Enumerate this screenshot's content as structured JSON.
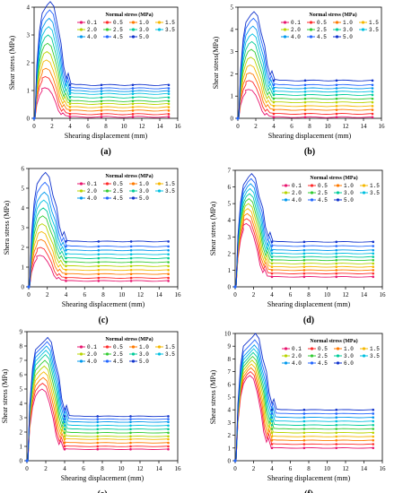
{
  "figure": {
    "legend_title": "Normal stress (MPa)",
    "legend_labels_base": [
      "0.1",
      "0.5",
      "1.0",
      "1.5",
      "2.0",
      "2.5",
      "3.0",
      "3.5",
      "4.0",
      "4.5",
      "5.0"
    ],
    "legend_labels_f": [
      "0.1",
      "0.5",
      "1.0",
      "1.5",
      "2.0",
      "2.5",
      "3.0",
      "3.5",
      "4.0",
      "4.5",
      "6.0"
    ],
    "series_colors": [
      "#e8156f",
      "#ff2b2b",
      "#ff7a00",
      "#f5b800",
      "#b8d400",
      "#33cc33",
      "#00cc99",
      "#00c0e0",
      "#0099ee",
      "#2266ff",
      "#1133cc"
    ]
  },
  "chart_data": [
    {
      "panel_label": "(a)",
      "type": "line",
      "xlabel": "Shearing displacement (mm)",
      "ylabel": "Shear stress (MPa)",
      "xlim": [
        0,
        16
      ],
      "ylim": [
        0,
        4
      ],
      "xticks": [
        "0",
        "2",
        "4",
        "6",
        "8",
        "10",
        "12",
        "14",
        "16"
      ],
      "yticks": [
        "0",
        "1",
        "2",
        "3",
        "4"
      ],
      "legend_position": "top-right",
      "series": [
        {
          "name": "0.1",
          "peak": 1.1,
          "residual": 0.05
        },
        {
          "name": "0.5",
          "peak": 1.5,
          "residual": 0.15
        },
        {
          "name": "1.0",
          "peak": 1.8,
          "residual": 0.28
        },
        {
          "name": "1.5",
          "peak": 2.1,
          "residual": 0.4
        },
        {
          "name": "2.0",
          "peak": 2.4,
          "residual": 0.52
        },
        {
          "name": "2.5",
          "peak": 2.7,
          "residual": 0.62
        },
        {
          "name": "3.0",
          "peak": 3.0,
          "residual": 0.75
        },
        {
          "name": "3.5",
          "peak": 3.3,
          "residual": 0.88
        },
        {
          "name": "4.0",
          "peak": 3.6,
          "residual": 0.98
        },
        {
          "name": "4.5",
          "peak": 3.9,
          "residual": 1.08
        },
        {
          "name": "5.0",
          "peak": 4.2,
          "residual": 1.2
        }
      ]
    },
    {
      "panel_label": "(b)",
      "type": "line",
      "xlabel": "Shearing displacement (mm)",
      "ylabel": "Shear stress(MPa)",
      "xlim": [
        0,
        16
      ],
      "ylim": [
        0,
        5
      ],
      "xticks": [
        "0",
        "2",
        "4",
        "6",
        "8",
        "10",
        "12",
        "14",
        "16"
      ],
      "yticks": [
        "0",
        "1",
        "2",
        "3",
        "4",
        "5"
      ],
      "legend_position": "top-right",
      "series": [
        {
          "name": "0.1",
          "peak": 1.3,
          "residual": 0.05
        },
        {
          "name": "0.5",
          "peak": 1.7,
          "residual": 0.2
        },
        {
          "name": "1.0",
          "peak": 2.05,
          "residual": 0.38
        },
        {
          "name": "1.5",
          "peak": 2.4,
          "residual": 0.55
        },
        {
          "name": "2.0",
          "peak": 2.75,
          "residual": 0.72
        },
        {
          "name": "2.5",
          "peak": 3.1,
          "residual": 0.88
        },
        {
          "name": "3.0",
          "peak": 3.45,
          "residual": 1.05
        },
        {
          "name": "3.5",
          "peak": 3.8,
          "residual": 1.2
        },
        {
          "name": "4.0",
          "peak": 4.15,
          "residual": 1.35
        },
        {
          "name": "4.5",
          "peak": 4.5,
          "residual": 1.5
        },
        {
          "name": "5.0",
          "peak": 4.8,
          "residual": 1.7
        }
      ]
    },
    {
      "panel_label": "(c)",
      "type": "line",
      "xlabel": "Shearing displacement (mm)",
      "ylabel": "Shera stress (MPa)",
      "xlim": [
        0,
        16
      ],
      "ylim": [
        0,
        6
      ],
      "xticks": [
        "0",
        "2",
        "4",
        "6",
        "8",
        "10",
        "12",
        "14",
        "16"
      ],
      "yticks": [
        "0",
        "1",
        "2",
        "3",
        "4",
        "5",
        "6"
      ],
      "legend_position": "top-right",
      "series": [
        {
          "name": "0.1",
          "peak": 1.6,
          "residual": 0.3
        },
        {
          "name": "0.5",
          "peak": 2.0,
          "residual": 0.45
        },
        {
          "name": "1.0",
          "peak": 2.4,
          "residual": 0.65
        },
        {
          "name": "1.5",
          "peak": 2.8,
          "residual": 0.85
        },
        {
          "name": "2.0",
          "peak": 3.2,
          "residual": 1.05
        },
        {
          "name": "2.5",
          "peak": 3.6,
          "residual": 1.25
        },
        {
          "name": "3.0",
          "peak": 4.0,
          "residual": 1.45
        },
        {
          "name": "3.5",
          "peak": 4.4,
          "residual": 1.65
        },
        {
          "name": "4.0",
          "peak": 4.8,
          "residual": 1.85
        },
        {
          "name": "4.5",
          "peak": 5.3,
          "residual": 2.05
        },
        {
          "name": "5.0",
          "peak": 5.8,
          "residual": 2.3
        }
      ]
    },
    {
      "panel_label": "(d)",
      "type": "line",
      "xlabel": "Shearing displacement (mm)",
      "ylabel": "Shear stress (MPa)",
      "xlim": [
        0,
        16
      ],
      "ylim": [
        0,
        7
      ],
      "xticks": [
        "0",
        "2",
        "4",
        "6",
        "8",
        "10",
        "12",
        "14",
        "16"
      ],
      "yticks": [
        "0",
        "1",
        "2",
        "3",
        "4",
        "5",
        "6",
        "7"
      ],
      "legend_position": "top-right",
      "series": [
        {
          "name": "0.1",
          "peak": 3.8,
          "residual": 0.6
        },
        {
          "name": "0.5",
          "peak": 4.1,
          "residual": 0.8
        },
        {
          "name": "1.0",
          "peak": 4.4,
          "residual": 1.0
        },
        {
          "name": "1.5",
          "peak": 4.7,
          "residual": 1.2
        },
        {
          "name": "2.0",
          "peak": 5.0,
          "residual": 1.4
        },
        {
          "name": "2.5",
          "peak": 5.3,
          "residual": 1.6
        },
        {
          "name": "3.0",
          "peak": 5.6,
          "residual": 1.8
        },
        {
          "name": "3.5",
          "peak": 5.9,
          "residual": 2.0
        },
        {
          "name": "4.0",
          "peak": 6.2,
          "residual": 2.2
        },
        {
          "name": "4.5",
          "peak": 6.5,
          "residual": 2.45
        },
        {
          "name": "5.0",
          "peak": 6.8,
          "residual": 2.7
        }
      ]
    },
    {
      "panel_label": "(e)",
      "type": "line",
      "xlabel": "Shearing displacement (mm)",
      "ylabel": "Shear stress (MPa)",
      "xlim": [
        0,
        16
      ],
      "ylim": [
        0,
        9
      ],
      "xticks": [
        "0",
        "2",
        "4",
        "6",
        "8",
        "10",
        "12",
        "14",
        "16"
      ],
      "yticks": [
        "0",
        "1",
        "2",
        "3",
        "4",
        "5",
        "6",
        "7",
        "8",
        "9"
      ],
      "legend_position": "top-right",
      "series": [
        {
          "name": "0.1",
          "peak": 5.0,
          "residual": 0.8
        },
        {
          "name": "0.5",
          "peak": 5.4,
          "residual": 1.0
        },
        {
          "name": "1.0",
          "peak": 5.8,
          "residual": 1.25
        },
        {
          "name": "1.5",
          "peak": 6.2,
          "residual": 1.5
        },
        {
          "name": "2.0",
          "peak": 6.6,
          "residual": 1.7
        },
        {
          "name": "2.5",
          "peak": 7.0,
          "residual": 1.95
        },
        {
          "name": "3.0",
          "peak": 7.4,
          "residual": 2.2
        },
        {
          "name": "3.5",
          "peak": 7.7,
          "residual": 2.45
        },
        {
          "name": "4.0",
          "peak": 8.0,
          "residual": 2.7
        },
        {
          "name": "4.5",
          "peak": 8.3,
          "residual": 2.9
        },
        {
          "name": "5.0",
          "peak": 8.6,
          "residual": 3.1
        }
      ]
    },
    {
      "panel_label": "(f)",
      "type": "line",
      "xlabel": "Shearing displacement (mm)",
      "ylabel": "Shear stress (MPa)",
      "xlim": [
        0,
        16
      ],
      "ylim": [
        0,
        10
      ],
      "xticks": [
        "0",
        "2",
        "4",
        "6",
        "8",
        "10",
        "12",
        "14",
        "16"
      ],
      "yticks": [
        "0",
        "1",
        "2",
        "3",
        "4",
        "5",
        "6",
        "7",
        "8",
        "9",
        "10"
      ],
      "legend_position": "top-right",
      "series": [
        {
          "name": "0.1",
          "peak": 6.7,
          "residual": 1.0
        },
        {
          "name": "0.5",
          "peak": 7.0,
          "residual": 1.3
        },
        {
          "name": "1.0",
          "peak": 7.3,
          "residual": 1.6
        },
        {
          "name": "1.5",
          "peak": 7.6,
          "residual": 1.9
        },
        {
          "name": "2.0",
          "peak": 7.9,
          "residual": 2.2
        },
        {
          "name": "2.5",
          "peak": 8.2,
          "residual": 2.5
        },
        {
          "name": "3.0",
          "peak": 8.5,
          "residual": 2.8
        },
        {
          "name": "3.5",
          "peak": 8.8,
          "residual": 3.1
        },
        {
          "name": "4.0",
          "peak": 9.1,
          "residual": 3.4
        },
        {
          "name": "4.5",
          "peak": 9.5,
          "residual": 3.7
        },
        {
          "name": "6.0",
          "peak": 10.0,
          "residual": 4.0
        }
      ]
    }
  ]
}
